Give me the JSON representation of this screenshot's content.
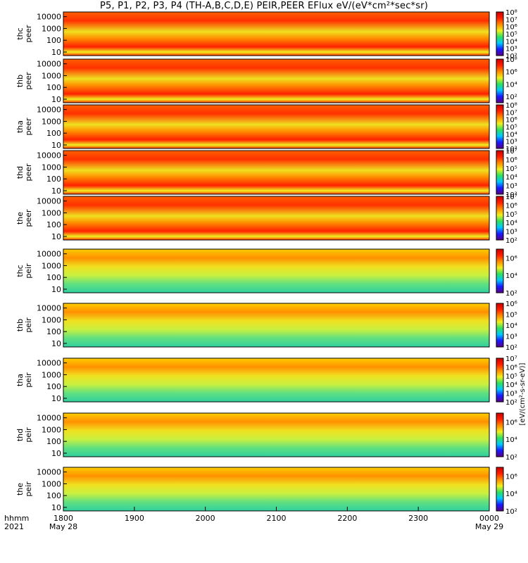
{
  "title": "P5, P1, P2, P3, P4 (TH-A,B,C,D,E) PEIR,PEER EFlux eV/(eV*cm²*sec*sr)",
  "chart_data": {
    "type": "heatmap",
    "title": "P5, P1, P2, P3, P4 (TH-A,B,C,D,E) PEIR,PEER EFlux eV/(eV*cm²*sec*sr)",
    "x_axis": {
      "label_line1": "hhmm",
      "label_line2": "2021",
      "ticks": [
        "1800",
        "1900",
        "2000",
        "2100",
        "2200",
        "2300",
        "0000"
      ],
      "date_labels": [
        {
          "tick": "1800",
          "date": "May 28"
        },
        {
          "tick": "0000",
          "date": "May 29"
        }
      ],
      "range": [
        "2021-05-28 18:00",
        "2021-05-29 00:00"
      ]
    },
    "y_scale": "log",
    "y_ticks": [
      "10",
      "100",
      "1000",
      "10000"
    ],
    "y_range": [
      5,
      25000
    ],
    "colorbar_unit": "[eV/(cm²-s-sr-eV)]",
    "colormap": [
      "#5a0080",
      "#1a1aff",
      "#00c8ff",
      "#30e060",
      "#f0f020",
      "#ff8c00",
      "#ff2000",
      "#c80000"
    ],
    "panels": [
      {
        "probe": "thc",
        "species": "peer",
        "cbar_ticks": [
          "10²",
          "10³",
          "10⁴",
          "10⁵",
          "10⁶",
          "10⁷",
          "10⁸"
        ],
        "cbar_exp": [
          2,
          8
        ]
      },
      {
        "probe": "thb",
        "species": "peer",
        "cbar_ticks": [
          "10²",
          "10⁴",
          "10⁶",
          "10⁸"
        ],
        "cbar_exp": [
          1,
          8
        ]
      },
      {
        "probe": "tha",
        "species": "peer",
        "cbar_ticks": [
          "10²",
          "10³",
          "10⁴",
          "10⁵",
          "10⁶",
          "10⁷",
          "10⁸"
        ],
        "cbar_exp": [
          2,
          8
        ]
      },
      {
        "probe": "thd",
        "species": "peer",
        "cbar_ticks": [
          "10²",
          "10³",
          "10⁴",
          "10⁵",
          "10⁶",
          "10⁷"
        ],
        "cbar_exp": [
          2,
          7
        ]
      },
      {
        "probe": "the",
        "species": "peer",
        "cbar_ticks": [
          "10²",
          "10³",
          "10⁴",
          "10⁵",
          "10⁶",
          "10⁷"
        ],
        "cbar_exp": [
          2,
          7
        ]
      },
      {
        "probe": "thc",
        "species": "peir",
        "cbar_ticks": [
          "10²",
          "10⁴",
          "10⁶"
        ],
        "cbar_exp": [
          2,
          7
        ]
      },
      {
        "probe": "thb",
        "species": "peir",
        "cbar_ticks": [
          "10²",
          "10³",
          "10⁴",
          "10⁵",
          "10⁶"
        ],
        "cbar_exp": [
          2,
          6
        ]
      },
      {
        "probe": "tha",
        "species": "peir",
        "cbar_ticks": [
          "10²",
          "10³",
          "10⁴",
          "10⁵",
          "10⁶",
          "10⁷"
        ],
        "cbar_exp": [
          2,
          7
        ]
      },
      {
        "probe": "thd",
        "species": "peir",
        "cbar_ticks": [
          "10²",
          "10⁴",
          "10⁶"
        ],
        "cbar_exp": [
          2,
          7
        ]
      },
      {
        "probe": "the",
        "species": "peir",
        "cbar_ticks": [
          "10²",
          "10⁴",
          "10⁶"
        ],
        "cbar_exp": [
          2,
          7
        ]
      }
    ],
    "grid": false,
    "legend": "colorbars-right"
  }
}
